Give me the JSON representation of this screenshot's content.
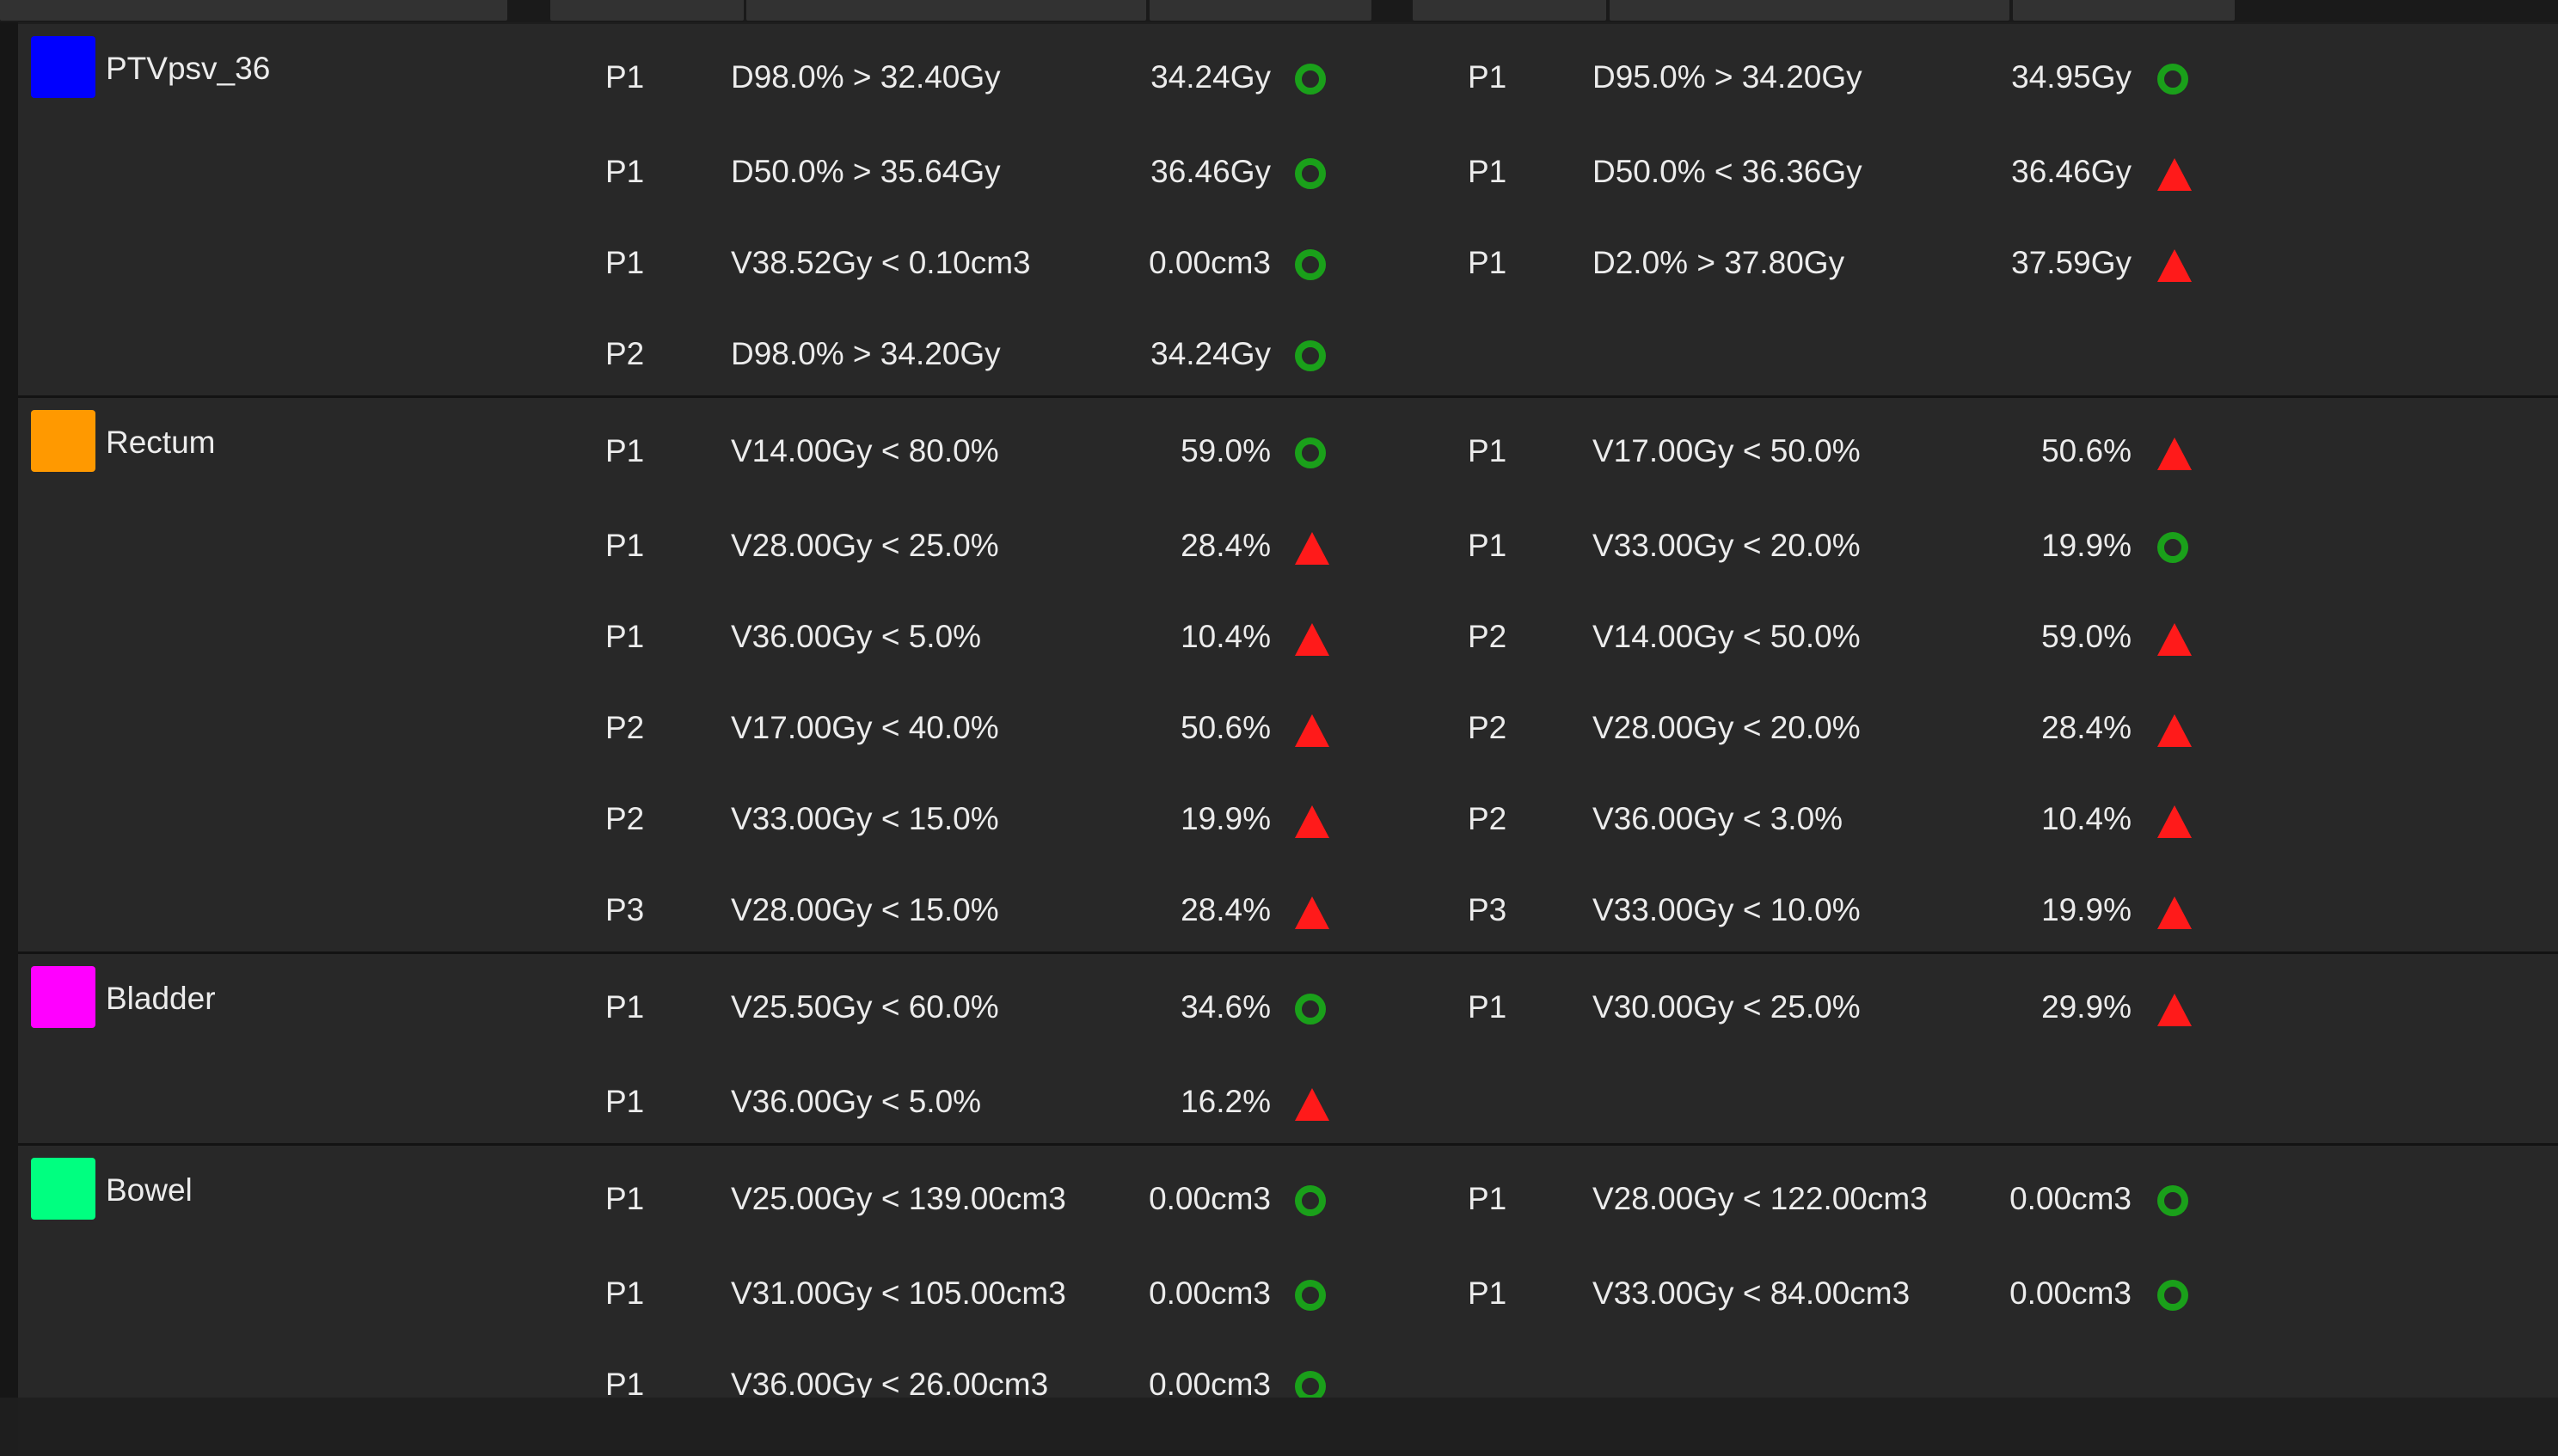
{
  "colors": {
    "ok": "#1aa01a",
    "fail": "#ff1a1a",
    "background": "#282828"
  },
  "groups": [
    {
      "structure": "PTVpsv_36",
      "color": "#0000ff",
      "rows": [
        {
          "left": {
            "priority": "P1",
            "objective": "D98.0% > 32.40Gy",
            "value": "34.24Gy",
            "status": "ok"
          },
          "right": {
            "priority": "P1",
            "objective": "D95.0% > 34.20Gy",
            "value": "34.95Gy",
            "status": "ok"
          }
        },
        {
          "left": {
            "priority": "P1",
            "objective": "D50.0% > 35.64Gy",
            "value": "36.46Gy",
            "status": "ok"
          },
          "right": {
            "priority": "P1",
            "objective": "D50.0% < 36.36Gy",
            "value": "36.46Gy",
            "status": "fail"
          }
        },
        {
          "left": {
            "priority": "P1",
            "objective": "V38.52Gy < 0.10cm3",
            "value": "0.00cm3",
            "status": "ok"
          },
          "right": {
            "priority": "P1",
            "objective": "D2.0% > 37.80Gy",
            "value": "37.59Gy",
            "status": "fail"
          }
        },
        {
          "left": {
            "priority": "P2",
            "objective": "D98.0% > 34.20Gy",
            "value": "34.24Gy",
            "status": "ok"
          },
          "right": null
        }
      ]
    },
    {
      "structure": "Rectum",
      "color": "#ff9900",
      "rows": [
        {
          "left": {
            "priority": "P1",
            "objective": "V14.00Gy < 80.0%",
            "value": "59.0%",
            "status": "ok"
          },
          "right": {
            "priority": "P1",
            "objective": "V17.00Gy < 50.0%",
            "value": "50.6%",
            "status": "fail"
          }
        },
        {
          "left": {
            "priority": "P1",
            "objective": "V28.00Gy < 25.0%",
            "value": "28.4%",
            "status": "fail"
          },
          "right": {
            "priority": "P1",
            "objective": "V33.00Gy < 20.0%",
            "value": "19.9%",
            "status": "ok"
          }
        },
        {
          "left": {
            "priority": "P1",
            "objective": "V36.00Gy < 5.0%",
            "value": "10.4%",
            "status": "fail"
          },
          "right": {
            "priority": "P2",
            "objective": "V14.00Gy < 50.0%",
            "value": "59.0%",
            "status": "fail"
          }
        },
        {
          "left": {
            "priority": "P2",
            "objective": "V17.00Gy < 40.0%",
            "value": "50.6%",
            "status": "fail"
          },
          "right": {
            "priority": "P2",
            "objective": "V28.00Gy < 20.0%",
            "value": "28.4%",
            "status": "fail"
          }
        },
        {
          "left": {
            "priority": "P2",
            "objective": "V33.00Gy < 15.0%",
            "value": "19.9%",
            "status": "fail"
          },
          "right": {
            "priority": "P2",
            "objective": "V36.00Gy < 3.0%",
            "value": "10.4%",
            "status": "fail"
          }
        },
        {
          "left": {
            "priority": "P3",
            "objective": "V28.00Gy < 15.0%",
            "value": "28.4%",
            "status": "fail"
          },
          "right": {
            "priority": "P3",
            "objective": "V33.00Gy < 10.0%",
            "value": "19.9%",
            "status": "fail"
          }
        }
      ]
    },
    {
      "structure": "Bladder",
      "color": "#ff00ff",
      "rows": [
        {
          "left": {
            "priority": "P1",
            "objective": "V25.50Gy < 60.0%",
            "value": "34.6%",
            "status": "ok"
          },
          "right": {
            "priority": "P1",
            "objective": "V30.00Gy < 25.0%",
            "value": "29.9%",
            "status": "fail"
          }
        },
        {
          "left": {
            "priority": "P1",
            "objective": "V36.00Gy < 5.0%",
            "value": "16.2%",
            "status": "fail"
          },
          "right": null
        }
      ]
    },
    {
      "structure": "Bowel",
      "color": "#00ff80",
      "rows": [
        {
          "left": {
            "priority": "P1",
            "objective": "V25.00Gy < 139.00cm3",
            "value": "0.00cm3",
            "status": "ok"
          },
          "right": {
            "priority": "P1",
            "objective": "V28.00Gy < 122.00cm3",
            "value": "0.00cm3",
            "status": "ok"
          }
        },
        {
          "left": {
            "priority": "P1",
            "objective": "V31.00Gy < 105.00cm3",
            "value": "0.00cm3",
            "status": "ok"
          },
          "right": {
            "priority": "P1",
            "objective": "V33.00Gy < 84.00cm3",
            "value": "0.00cm3",
            "status": "ok"
          }
        },
        {
          "left": {
            "priority": "P1",
            "objective": "V36.00Gy < 26.00cm3",
            "value": "0.00cm3",
            "status": "ok"
          },
          "right": null
        }
      ]
    }
  ]
}
